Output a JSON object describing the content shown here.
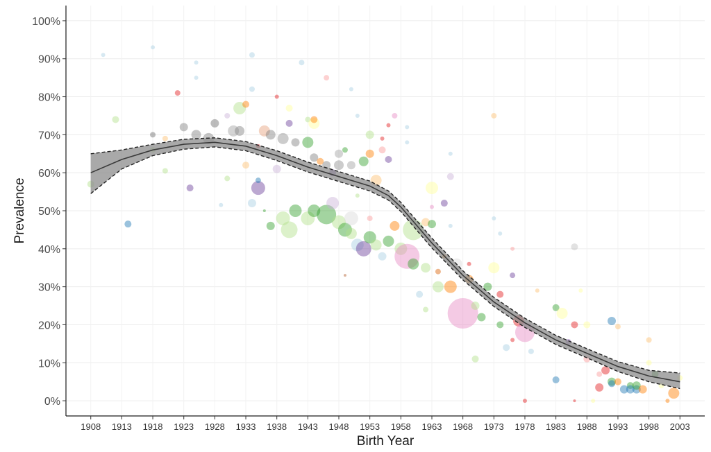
{
  "chart_data": {
    "type": "scatter",
    "xlabel": "Birth Year",
    "ylabel": "Prevalence",
    "xlim": [
      1904,
      2007
    ],
    "ylim": [
      -4,
      104
    ],
    "x_ticks": [
      1908,
      1913,
      1918,
      1923,
      1928,
      1933,
      1938,
      1943,
      1948,
      1953,
      1958,
      1963,
      1968,
      1973,
      1978,
      1983,
      1988,
      1993,
      1998,
      2003
    ],
    "y_ticks": [
      {
        "value": 0,
        "label": "0%"
      },
      {
        "value": 10,
        "label": "10%"
      },
      {
        "value": 20,
        "label": "20%"
      },
      {
        "value": 30,
        "label": "30%"
      },
      {
        "value": 40,
        "label": "40%"
      },
      {
        "value": 50,
        "label": "50%"
      },
      {
        "value": 60,
        "label": "60%"
      },
      {
        "value": 70,
        "label": "70%"
      },
      {
        "value": 80,
        "label": "80%"
      },
      {
        "value": 90,
        "label": "90%"
      },
      {
        "value": 100,
        "label": "100%"
      }
    ],
    "grid": true,
    "legend": "none",
    "trend": {
      "x": [
        1908,
        1913,
        1918,
        1923,
        1928,
        1933,
        1938,
        1943,
        1948,
        1953,
        1956,
        1958,
        1963,
        1968,
        1973,
        1978,
        1983,
        1988,
        1993,
        1998,
        2003
      ],
      "y": [
        60,
        63.5,
        66,
        67.5,
        68,
        67,
        64.5,
        61.5,
        59,
        56.5,
        54,
        51,
        41.5,
        33,
        26,
        20.5,
        16,
        12.5,
        9,
        6.5,
        5
      ],
      "upper": [
        65,
        66,
        67.5,
        68.8,
        69.2,
        68.2,
        65.8,
        62.8,
        60.3,
        57.8,
        55.2,
        52.2,
        42.8,
        34.2,
        27.2,
        21.7,
        17.2,
        13.7,
        10.3,
        8,
        7.3
      ],
      "lower": [
        54.5,
        61,
        64.5,
        66.2,
        66.8,
        65.8,
        63.2,
        60.2,
        57.7,
        55.2,
        52.8,
        49.8,
        40.2,
        31.8,
        24.8,
        19.3,
        14.8,
        11.3,
        7.7,
        5,
        3.2
      ],
      "line_color": "#3a3a3a",
      "band_color": "#8c8c8c"
    },
    "points": [
      {
        "x": 1910,
        "y": 91,
        "size": 3,
        "color": "#a6cee3"
      },
      {
        "x": 1918,
        "y": 93,
        "size": 3,
        "color": "#a6cee3"
      },
      {
        "x": 1912,
        "y": 74,
        "size": 5,
        "color": "#b2df8a"
      },
      {
        "x": 1914,
        "y": 46.5,
        "size": 5,
        "color": "#1f78b4"
      },
      {
        "x": 1908,
        "y": 57,
        "size": 5,
        "color": "#b2df8a"
      },
      {
        "x": 1918,
        "y": 70,
        "size": 4,
        "color": "#6a6a6a"
      },
      {
        "x": 1918,
        "y": 66,
        "size": 4,
        "color": "#b2df8a"
      },
      {
        "x": 1920,
        "y": 69,
        "size": 4,
        "color": "#fdbf6f"
      },
      {
        "x": 1920,
        "y": 60.5,
        "size": 4,
        "color": "#b2df8a"
      },
      {
        "x": 1922,
        "y": 81,
        "size": 4,
        "color": "#e31a1c"
      },
      {
        "x": 1923,
        "y": 72,
        "size": 6,
        "color": "#7f7f7f"
      },
      {
        "x": 1924,
        "y": 56,
        "size": 5,
        "color": "#6a3d9a"
      },
      {
        "x": 1925,
        "y": 89,
        "size": 3,
        "color": "#a6cee3"
      },
      {
        "x": 1925,
        "y": 85,
        "size": 3,
        "color": "#a6cee3"
      },
      {
        "x": 1925,
        "y": 70,
        "size": 7,
        "color": "#7f7f7f"
      },
      {
        "x": 1927,
        "y": 69,
        "size": 8,
        "color": "#7f7f7f"
      },
      {
        "x": 1928,
        "y": 73,
        "size": 6,
        "color": "#6a6a6a"
      },
      {
        "x": 1929,
        "y": 51.5,
        "size": 3,
        "color": "#a6cee3"
      },
      {
        "x": 1930,
        "y": 58.5,
        "size": 4,
        "color": "#b2df8a"
      },
      {
        "x": 1930,
        "y": 75,
        "size": 4,
        "color": "#cab2d6"
      },
      {
        "x": 1931,
        "y": 71,
        "size": 8,
        "color": "#a0a0a0"
      },
      {
        "x": 1932,
        "y": 77,
        "size": 9,
        "color": "#b2df8a"
      },
      {
        "x": 1933,
        "y": 78,
        "size": 5,
        "color": "#ff7f00"
      },
      {
        "x": 1932,
        "y": 71,
        "size": 7,
        "color": "#7f7f7f"
      },
      {
        "x": 1933,
        "y": 62,
        "size": 5,
        "color": "#fdbf6f"
      },
      {
        "x": 1934,
        "y": 91,
        "size": 4,
        "color": "#a6cee3"
      },
      {
        "x": 1934,
        "y": 82,
        "size": 4,
        "color": "#a6cee3"
      },
      {
        "x": 1934,
        "y": 52,
        "size": 6,
        "color": "#a6cee3"
      },
      {
        "x": 1935,
        "y": 56,
        "size": 10,
        "color": "#6a3d9a"
      },
      {
        "x": 1935,
        "y": 58,
        "size": 4,
        "color": "#1f78b4"
      },
      {
        "x": 1935,
        "y": 67,
        "size": 3,
        "color": "#e31a1c"
      },
      {
        "x": 1936,
        "y": 71,
        "size": 8,
        "color": "#e6a07a"
      },
      {
        "x": 1937,
        "y": 70,
        "size": 7,
        "color": "#7f7f7f"
      },
      {
        "x": 1936,
        "y": 50,
        "size": 2,
        "color": "#33a02c"
      },
      {
        "x": 1938,
        "y": 80,
        "size": 3,
        "color": "#e31a1c"
      },
      {
        "x": 1938,
        "y": 61,
        "size": 6,
        "color": "#cab2d6"
      },
      {
        "x": 1939,
        "y": 69,
        "size": 8,
        "color": "#8f8f8f"
      },
      {
        "x": 1940,
        "y": 73,
        "size": 5,
        "color": "#6a3d9a"
      },
      {
        "x": 1940,
        "y": 77,
        "size": 5,
        "color": "#ffff99"
      },
      {
        "x": 1941,
        "y": 68,
        "size": 6,
        "color": "#7f7f7f"
      },
      {
        "x": 1942,
        "y": 89,
        "size": 4,
        "color": "#a6cee3"
      },
      {
        "x": 1943,
        "y": 74,
        "size": 4,
        "color": "#b2df8a"
      },
      {
        "x": 1943,
        "y": 68,
        "size": 8,
        "color": "#33a02c"
      },
      {
        "x": 1944,
        "y": 73,
        "size": 8,
        "color": "#ffff99"
      },
      {
        "x": 1944,
        "y": 74,
        "size": 5,
        "color": "#ff7f00"
      },
      {
        "x": 1944,
        "y": 64,
        "size": 6,
        "color": "#7f7f7f"
      },
      {
        "x": 1945,
        "y": 63,
        "size": 5,
        "color": "#ff7f00"
      },
      {
        "x": 1946,
        "y": 85,
        "size": 4,
        "color": "#fb9a99"
      },
      {
        "x": 1946,
        "y": 62,
        "size": 6,
        "color": "#7f7f7f"
      },
      {
        "x": 1947,
        "y": 60,
        "size": 5,
        "color": "#6a3d9a"
      },
      {
        "x": 1948,
        "y": 65,
        "size": 6,
        "color": "#a0a0a0"
      },
      {
        "x": 1948,
        "y": 62,
        "size": 7,
        "color": "#8f8f8f"
      },
      {
        "x": 1949,
        "y": 66,
        "size": 4,
        "color": "#33a02c"
      },
      {
        "x": 1950,
        "y": 62,
        "size": 6,
        "color": "#a0a0a0"
      },
      {
        "x": 1950,
        "y": 82,
        "size": 3,
        "color": "#a6cee3"
      },
      {
        "x": 1951,
        "y": 75,
        "size": 3,
        "color": "#a6cee3"
      },
      {
        "x": 1952,
        "y": 63,
        "size": 7,
        "color": "#33a02c"
      },
      {
        "x": 1953,
        "y": 70,
        "size": 6,
        "color": "#b2df8a"
      },
      {
        "x": 1953,
        "y": 65,
        "size": 6,
        "color": "#ff7f00"
      },
      {
        "x": 1954,
        "y": 58,
        "size": 8,
        "color": "#fdbf6f"
      },
      {
        "x": 1955,
        "y": 66,
        "size": 5,
        "color": "#fb9a99"
      },
      {
        "x": 1955,
        "y": 69,
        "size": 3,
        "color": "#e31a1c"
      },
      {
        "x": 1956,
        "y": 72.5,
        "size": 3,
        "color": "#e31a1c"
      },
      {
        "x": 1956,
        "y": 63.5,
        "size": 5,
        "color": "#6a3d9a"
      },
      {
        "x": 1957,
        "y": 75,
        "size": 4,
        "color": "#e78ac3"
      },
      {
        "x": 1959,
        "y": 72,
        "size": 3,
        "color": "#a6cee3"
      },
      {
        "x": 1959,
        "y": 68,
        "size": 3,
        "color": "#a6cee3"
      },
      {
        "x": 1953,
        "y": 48,
        "size": 4,
        "color": "#fb9a99"
      },
      {
        "x": 1949,
        "y": 33,
        "size": 2,
        "color": "#b15928"
      },
      {
        "x": 1951,
        "y": 54,
        "size": 3,
        "color": "#b2df8a"
      },
      {
        "x": 1937,
        "y": 46,
        "size": 6,
        "color": "#33a02c"
      },
      {
        "x": 1939,
        "y": 48,
        "size": 10,
        "color": "#b2df8a"
      },
      {
        "x": 1940,
        "y": 45,
        "size": 12,
        "color": "#b2df8a"
      },
      {
        "x": 1941,
        "y": 50,
        "size": 9,
        "color": "#33a02c"
      },
      {
        "x": 1943,
        "y": 48,
        "size": 10,
        "color": "#b2df8a"
      },
      {
        "x": 1944,
        "y": 50,
        "size": 9,
        "color": "#33a02c"
      },
      {
        "x": 1946,
        "y": 49,
        "size": 14,
        "color": "#33a02c"
      },
      {
        "x": 1947,
        "y": 52,
        "size": 9,
        "color": "#cab2d6"
      },
      {
        "x": 1948,
        "y": 47,
        "size": 10,
        "color": "#b2df8a"
      },
      {
        "x": 1949,
        "y": 45,
        "size": 10,
        "color": "#33a02c"
      },
      {
        "x": 1950,
        "y": 48,
        "size": 10,
        "color": "#d9d9d9"
      },
      {
        "x": 1950,
        "y": 44,
        "size": 8,
        "color": "#b2df8a"
      },
      {
        "x": 1951,
        "y": 41,
        "size": 9,
        "color": "#a6cee3"
      },
      {
        "x": 1952,
        "y": 40,
        "size": 11,
        "color": "#6a3d9a"
      },
      {
        "x": 1953,
        "y": 43,
        "size": 9,
        "color": "#33a02c"
      },
      {
        "x": 1954,
        "y": 41,
        "size": 8,
        "color": "#b2df8a"
      },
      {
        "x": 1955,
        "y": 38,
        "size": 6,
        "color": "#a6cee3"
      },
      {
        "x": 1956,
        "y": 42,
        "size": 8,
        "color": "#33a02c"
      },
      {
        "x": 1957,
        "y": 46,
        "size": 7,
        "color": "#ff7f00"
      },
      {
        "x": 1958,
        "y": 40,
        "size": 9,
        "color": "#b2df8a"
      },
      {
        "x": 1959,
        "y": 38,
        "size": 18,
        "color": "#e78ac3"
      },
      {
        "x": 1960,
        "y": 45,
        "size": 15,
        "color": "#b2df8a"
      },
      {
        "x": 1960,
        "y": 36,
        "size": 8,
        "color": "#33a02c"
      },
      {
        "x": 1961,
        "y": 28,
        "size": 5,
        "color": "#a6cee3"
      },
      {
        "x": 1962,
        "y": 47,
        "size": 6,
        "color": "#fdbf6f"
      },
      {
        "x": 1962,
        "y": 35,
        "size": 7,
        "color": "#b2df8a"
      },
      {
        "x": 1962,
        "y": 24,
        "size": 4,
        "color": "#b2df8a"
      },
      {
        "x": 1963,
        "y": 46.5,
        "size": 6,
        "color": "#33a02c"
      },
      {
        "x": 1963,
        "y": 56,
        "size": 9,
        "color": "#ffff99"
      },
      {
        "x": 1963,
        "y": 51,
        "size": 3,
        "color": "#e78ac3"
      },
      {
        "x": 1964,
        "y": 34,
        "size": 4,
        "color": "#d95f02"
      },
      {
        "x": 1964,
        "y": 30,
        "size": 8,
        "color": "#b2df8a"
      },
      {
        "x": 1965,
        "y": 38,
        "size": 3,
        "color": "#ff7f00"
      },
      {
        "x": 1965,
        "y": 52,
        "size": 5,
        "color": "#6a3d9a"
      },
      {
        "x": 1966,
        "y": 30,
        "size": 9,
        "color": "#ff7f00"
      },
      {
        "x": 1966,
        "y": 46,
        "size": 3,
        "color": "#a6cee3"
      },
      {
        "x": 1966,
        "y": 59,
        "size": 5,
        "color": "#cab2d6"
      },
      {
        "x": 1966,
        "y": 65,
        "size": 3,
        "color": "#a6cee3"
      },
      {
        "x": 1967,
        "y": 36,
        "size": 8,
        "color": "#d9d9d9"
      },
      {
        "x": 1968,
        "y": 23,
        "size": 22,
        "color": "#e78ac3"
      },
      {
        "x": 1969,
        "y": 32,
        "size": 6,
        "color": "#ff7f00"
      },
      {
        "x": 1969,
        "y": 36,
        "size": 3,
        "color": "#e31a1c"
      },
      {
        "x": 1970,
        "y": 25,
        "size": 6,
        "color": "#b2df8a"
      },
      {
        "x": 1970,
        "y": 11,
        "size": 5,
        "color": "#b2df8a"
      },
      {
        "x": 1971,
        "y": 22,
        "size": 6,
        "color": "#33a02c"
      },
      {
        "x": 1972,
        "y": 30,
        "size": 6,
        "color": "#33a02c"
      },
      {
        "x": 1973,
        "y": 75,
        "size": 4,
        "color": "#fdbf6f"
      },
      {
        "x": 1973,
        "y": 35,
        "size": 8,
        "color": "#ffff99"
      },
      {
        "x": 1973,
        "y": 48,
        "size": 3,
        "color": "#a6cee3"
      },
      {
        "x": 1974,
        "y": 44,
        "size": 3,
        "color": "#a6cee3"
      },
      {
        "x": 1974,
        "y": 28,
        "size": 5,
        "color": "#e31a1c"
      },
      {
        "x": 1974,
        "y": 20,
        "size": 5,
        "color": "#33a02c"
      },
      {
        "x": 1975,
        "y": 14,
        "size": 5,
        "color": "#a6cee3"
      },
      {
        "x": 1976,
        "y": 16,
        "size": 3,
        "color": "#e31a1c"
      },
      {
        "x": 1976,
        "y": 40,
        "size": 3,
        "color": "#fb9a99"
      },
      {
        "x": 1976,
        "y": 33,
        "size": 4,
        "color": "#6a3d9a"
      },
      {
        "x": 1977,
        "y": 21,
        "size": 8,
        "color": "#e31a1c"
      },
      {
        "x": 1978,
        "y": 18,
        "size": 14,
        "color": "#e78ac3"
      },
      {
        "x": 1978,
        "y": 0,
        "size": 3,
        "color": "#e31a1c"
      },
      {
        "x": 1979,
        "y": 13,
        "size": 4,
        "color": "#a6cee3"
      },
      {
        "x": 1980,
        "y": 29,
        "size": 3,
        "color": "#fdbf6f"
      },
      {
        "x": 1983,
        "y": 24.5,
        "size": 5,
        "color": "#33a02c"
      },
      {
        "x": 1983,
        "y": 5.5,
        "size": 5,
        "color": "#1f78b4"
      },
      {
        "x": 1984,
        "y": 23,
        "size": 8,
        "color": "#ffff99"
      },
      {
        "x": 1985,
        "y": 15.5,
        "size": 4,
        "color": "#6a3d9a"
      },
      {
        "x": 1986,
        "y": 0,
        "size": 2,
        "color": "#e31a1c"
      },
      {
        "x": 1986,
        "y": 20,
        "size": 5,
        "color": "#e31a1c"
      },
      {
        "x": 1986,
        "y": 40.5,
        "size": 5,
        "color": "#bfbfbf"
      },
      {
        "x": 1987,
        "y": 29,
        "size": 3,
        "color": "#ffff99"
      },
      {
        "x": 1988,
        "y": 20,
        "size": 5,
        "color": "#ffff99"
      },
      {
        "x": 1988,
        "y": 11,
        "size": 5,
        "color": "#fb9a99"
      },
      {
        "x": 1989,
        "y": 0,
        "size": 3,
        "color": "#ffff99"
      },
      {
        "x": 1990,
        "y": 7,
        "size": 4,
        "color": "#fb9a99"
      },
      {
        "x": 1990,
        "y": 3.5,
        "size": 6,
        "color": "#e31a1c"
      },
      {
        "x": 1991,
        "y": 8,
        "size": 6,
        "color": "#e31a1c"
      },
      {
        "x": 1992,
        "y": 21,
        "size": 6,
        "color": "#1f78b4"
      },
      {
        "x": 1992,
        "y": 5,
        "size": 6,
        "color": "#33a02c"
      },
      {
        "x": 1992,
        "y": 4.5,
        "size": 5,
        "color": "#1f78b4"
      },
      {
        "x": 1993,
        "y": 19.5,
        "size": 4,
        "color": "#fdbf6f"
      },
      {
        "x": 1993,
        "y": 5,
        "size": 5,
        "color": "#ff7f00"
      },
      {
        "x": 1994,
        "y": 3,
        "size": 6,
        "color": "#1f78b4"
      },
      {
        "x": 1995,
        "y": 4,
        "size": 5,
        "color": "#33a02c"
      },
      {
        "x": 1995,
        "y": 3,
        "size": 6,
        "color": "#1f78b4"
      },
      {
        "x": 1996,
        "y": 3,
        "size": 6,
        "color": "#1f78b4"
      },
      {
        "x": 1996,
        "y": 4,
        "size": 6,
        "color": "#33a02c"
      },
      {
        "x": 1997,
        "y": 3,
        "size": 6,
        "color": "#ff7f00"
      },
      {
        "x": 1998,
        "y": 16,
        "size": 4,
        "color": "#fdbf6f"
      },
      {
        "x": 1998,
        "y": 10,
        "size": 4,
        "color": "#ffff99"
      },
      {
        "x": 1999,
        "y": 7,
        "size": 5,
        "color": "#33a02c"
      },
      {
        "x": 2000,
        "y": 4,
        "size": 4,
        "color": "#ffff99"
      },
      {
        "x": 2001,
        "y": 0,
        "size": 3,
        "color": "#ff7f00"
      },
      {
        "x": 2002,
        "y": 2,
        "size": 8,
        "color": "#ff7f00"
      },
      {
        "x": 2003,
        "y": 6,
        "size": 4,
        "color": "#ffff99"
      }
    ]
  }
}
